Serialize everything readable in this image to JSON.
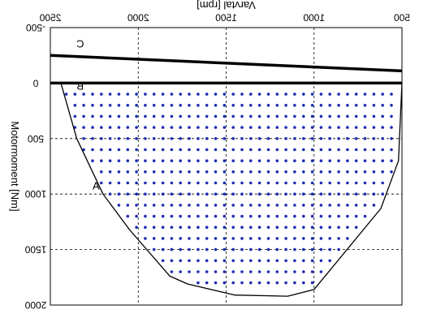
{
  "chart_data": {
    "type": "scatter",
    "title": "",
    "x_axis": {
      "label": "Varvtal [rpm]",
      "range": [
        500,
        2500
      ],
      "ticks": [
        "500",
        "1000",
        "1500",
        "2000",
        "2500"
      ],
      "position": "top"
    },
    "y_axis": {
      "label": "Motormoment [Nm]",
      "range": [
        -500,
        2000
      ],
      "ticks": [
        "-500",
        "0",
        "500",
        "1000",
        "1500",
        "2000"
      ],
      "inverted": true
    },
    "grid": true,
    "grid_style": "dashed",
    "mirrored": true,
    "lines": [
      {
        "label": "A",
        "points": [
          [
            500,
            0
          ],
          [
            520,
            700
          ],
          [
            620,
            1130
          ],
          [
            1000,
            1860
          ],
          [
            1150,
            1920
          ],
          [
            1450,
            1910
          ],
          [
            1720,
            1810
          ],
          [
            1820,
            1740
          ],
          [
            2050,
            1320
          ],
          [
            2200,
            1000
          ],
          [
            2350,
            500
          ],
          [
            2440,
            0
          ]
        ]
      },
      {
        "label": "B",
        "points": [
          [
            500,
            0
          ],
          [
            2500,
            0
          ]
        ]
      },
      {
        "label": "C",
        "points": [
          [
            500,
            -110
          ],
          [
            2500,
            -250
          ]
        ]
      }
    ],
    "line_label_positions": {
      "A": [
        2240,
        960
      ],
      "B": [
        2330,
        60
      ],
      "C": [
        2330,
        -320
      ]
    },
    "scatter": {
      "color": "#1f2bb5",
      "x_start": 560,
      "x_step": 50,
      "x_end": 2450,
      "y_start": 100,
      "y_step": 100,
      "y_end": 1900,
      "y_first_row": 100
    },
    "colors": {
      "frame": "#000000",
      "grid": "#000000",
      "points": "#1f2bb5",
      "background": "#ffffff"
    }
  }
}
